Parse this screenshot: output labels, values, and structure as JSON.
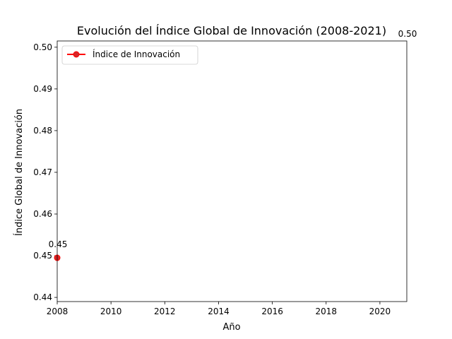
{
  "chart_data": {
    "type": "line",
    "title": "Evolución del Índice Global de Innovación (2008-2021)",
    "xlabel": "Año",
    "ylabel": "Índice Global de Innovación",
    "xlim": [
      2008,
      2021
    ],
    "ylim": [
      0.439,
      0.5015
    ],
    "x_ticks": [
      2008,
      2010,
      2012,
      2014,
      2016,
      2018,
      2020
    ],
    "y_ticks": [
      0.44,
      0.45,
      0.46,
      0.47,
      0.48,
      0.49,
      0.5
    ],
    "grid": false,
    "legend_position": "upper-left",
    "series": [
      {
        "name": "Índice de Innovación",
        "color": "#ff0000",
        "marker_color": "#d62728",
        "x": [
          2008
        ],
        "y": [
          0.4495
        ]
      }
    ],
    "annotations": [
      {
        "x": 2008,
        "y": 0.4495,
        "text": "0.45"
      },
      {
        "x": 2021,
        "y": 0.5,
        "text": "0.50"
      }
    ]
  }
}
